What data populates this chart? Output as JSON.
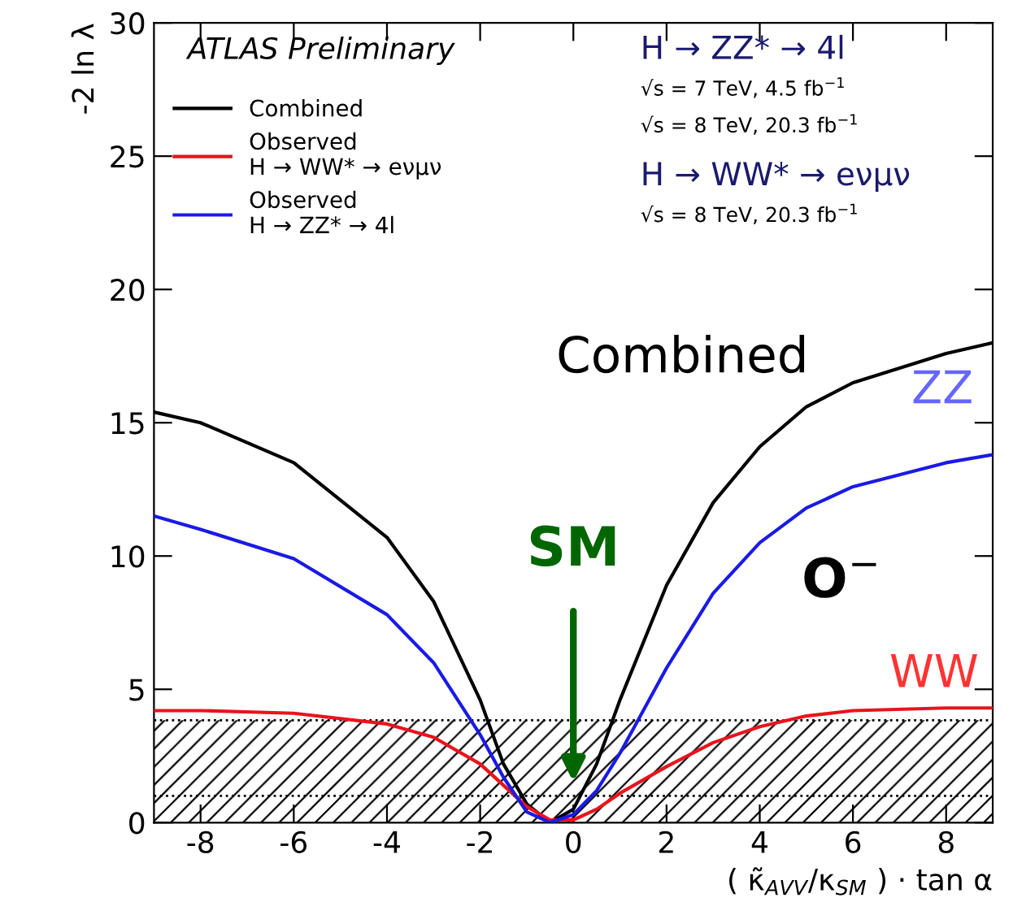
{
  "chart_data": {
    "type": "line",
    "ylabel": "-2 ln λ",
    "xlabel": "( κ̃$_{AVV}$/κ$_{SM}$ ) · tan α",
    "x": [
      -9,
      -8,
      -6,
      -4,
      -3,
      -2,
      -1.5,
      -1,
      -0.5,
      0,
      0.5,
      1,
      2,
      3,
      4,
      5,
      6,
      8,
      9
    ],
    "series": [
      {
        "name": "Combined",
        "color": "#000000",
        "values": [
          15.4,
          15.0,
          13.5,
          10.7,
          8.3,
          4.6,
          2.2,
          0.7,
          0.0,
          0.5,
          2.2,
          4.6,
          8.9,
          12.0,
          14.1,
          15.6,
          16.5,
          17.6,
          18.0
        ]
      },
      {
        "name": "Observed\nH → WW* → eνμν",
        "color": "#e8141c",
        "values": [
          4.2,
          4.2,
          4.1,
          3.7,
          3.2,
          2.2,
          1.4,
          0.6,
          0.1,
          0.1,
          0.5,
          1.1,
          2.1,
          3.0,
          3.6,
          4.0,
          4.2,
          4.3,
          4.3
        ]
      },
      {
        "name": "Observed\nH → ZZ* → 4l",
        "color": "#1a1ae6",
        "values": [
          11.5,
          11.0,
          9.9,
          7.8,
          6.0,
          3.3,
          1.7,
          0.4,
          0.0,
          0.3,
          1.2,
          2.6,
          5.8,
          8.6,
          10.5,
          11.8,
          12.6,
          13.5,
          13.8
        ]
      }
    ],
    "xlim": [
      -9,
      9
    ],
    "ylim": [
      0,
      30
    ],
    "xticks": [
      -8,
      -6,
      -4,
      -2,
      0,
      2,
      4,
      6,
      8
    ],
    "yticks": [
      0,
      5,
      10,
      15,
      20,
      25,
      30
    ],
    "bands": [
      {
        "axis": "y",
        "from": 0,
        "to": 3.84,
        "color": "#000000"
      }
    ],
    "ref_lines": [
      {
        "axis": "y",
        "value": 1,
        "line_style": "dotted",
        "color": "#000000"
      },
      {
        "axis": "y",
        "value": 3.84,
        "line_style": "dotted",
        "color": "#000000"
      }
    ],
    "legend": "top left",
    "grid": false,
    "line_style": "solid",
    "marker": "none",
    "annotations": [
      "ATLAS Preliminary",
      "H → ZZ* → 4l",
      "√s = 7 TeV, 4.5 fb$^{−1}$",
      "√s = 8 TeV, 20.3 fb$^{−1}$",
      "H → WW* → eνμν",
      "√s = 8 TeV, 20.3 fb$^{−1}$",
      "Combined",
      "ZZ",
      "WW",
      "SM",
      "O$^{−}$"
    ]
  }
}
